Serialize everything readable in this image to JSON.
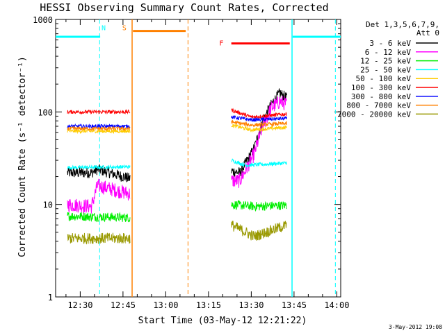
{
  "chart_data": {
    "type": "line",
    "title": "HESSI Observing Summary Count Rates, Corrected",
    "xlabel": "Start Time (03-May-12 12:21:22)",
    "ylabel": "Corrected Count Rate (s⁻¹ detector⁻¹)",
    "date_stamp": "3-May-2012 19:08",
    "x_axis": {
      "unit": "minutes since 12:00 UT",
      "range": [
        21.37,
        121.37
      ],
      "ticks": [
        {
          "x": 30,
          "label": "12:30"
        },
        {
          "x": 45,
          "label": "12:45"
        },
        {
          "x": 60,
          "label": "13:00"
        },
        {
          "x": 75,
          "label": "13:15"
        },
        {
          "x": 90,
          "label": "13:30"
        },
        {
          "x": 105,
          "label": "13:45"
        },
        {
          "x": 120,
          "label": "14:00"
        }
      ]
    },
    "y_axis": {
      "scale": "log",
      "range": [
        1,
        1000
      ],
      "ticks": [
        {
          "y": 1,
          "label": "1"
        },
        {
          "y": 10,
          "label": "10"
        },
        {
          "y": 100,
          "label": "100"
        },
        {
          "y": 1000,
          "label": "1000"
        }
      ]
    },
    "legend": {
      "header1": "Det 1,3,5,6,7,9,",
      "header2": "Att 0",
      "placement": "right"
    },
    "segments": [
      [
        25.5,
        47.5
      ],
      [
        83.0,
        102.5
      ]
    ],
    "series": [
      {
        "name": "3 - 6 keV",
        "color": "#000000",
        "noise": 0.06,
        "values": [
          [
            25.5,
            22
          ],
          [
            34,
            22
          ],
          [
            36,
            24
          ],
          [
            47.5,
            19
          ],
          [
            83,
            23
          ],
          [
            86,
            22
          ],
          [
            91,
            40
          ],
          [
            94,
            80
          ],
          [
            97,
            120
          ],
          [
            100,
            160
          ],
          [
            102.5,
            140
          ]
        ]
      },
      {
        "name": "6 - 12 keV",
        "color": "#ff00ff",
        "noise": 0.08,
        "values": [
          [
            25.5,
            10
          ],
          [
            34,
            9.5
          ],
          [
            36,
            16
          ],
          [
            47.5,
            13
          ],
          [
            83,
            18
          ],
          [
            86,
            18
          ],
          [
            91,
            35
          ],
          [
            94,
            70
          ],
          [
            97,
            110
          ],
          [
            100,
            130
          ],
          [
            102.5,
            120
          ]
        ]
      },
      {
        "name": "12 - 25 keV",
        "color": "#00ee00",
        "noise": 0.05,
        "values": [
          [
            25.5,
            7.5
          ],
          [
            47.5,
            7.2
          ],
          [
            83,
            10
          ],
          [
            91,
            9.5
          ],
          [
            102.5,
            9.8
          ]
        ]
      },
      {
        "name": "25 - 50 keV",
        "color": "#00ffff",
        "noise": 0.02,
        "values": [
          [
            25.5,
            25
          ],
          [
            47.5,
            25.5
          ],
          [
            83,
            30
          ],
          [
            88,
            26.5
          ],
          [
            102.5,
            28
          ]
        ]
      },
      {
        "name": "50 - 100 keV",
        "color": "#ffcc00",
        "noise": 0.02,
        "values": [
          [
            25.5,
            62
          ],
          [
            47.5,
            62
          ],
          [
            83,
            72
          ],
          [
            90,
            64
          ],
          [
            102.5,
            68
          ]
        ]
      },
      {
        "name": "100 - 300 keV",
        "color": "#ff0000",
        "noise": 0.02,
        "values": [
          [
            25.5,
            100
          ],
          [
            47.5,
            100
          ],
          [
            83,
            105
          ],
          [
            90,
            88
          ],
          [
            102.5,
            95
          ]
        ]
      },
      {
        "name": "300 - 800 keV",
        "color": "#0000ff",
        "noise": 0.02,
        "values": [
          [
            25.5,
            70
          ],
          [
            47.5,
            70
          ],
          [
            83,
            88
          ],
          [
            90,
            82
          ],
          [
            102.5,
            85
          ]
        ]
      },
      {
        "name": "800 - 7000 keV",
        "color": "#ff8000",
        "noise": 0.02,
        "values": [
          [
            25.5,
            66
          ],
          [
            47.5,
            66
          ],
          [
            83,
            78
          ],
          [
            90,
            72
          ],
          [
            102.5,
            75
          ]
        ]
      },
      {
        "name": "7000 - 20000 keV",
        "color": "#999900",
        "noise": 0.06,
        "values": [
          [
            25.5,
            4.3
          ],
          [
            47.5,
            4.3
          ],
          [
            83,
            6
          ],
          [
            91,
            4.5
          ],
          [
            102.5,
            6.0
          ]
        ]
      }
    ],
    "flags": [
      {
        "label": "N",
        "color": "#00ffff",
        "level": 650,
        "spans": [
          [
            21.37,
            37
          ],
          [
            104.5,
            121.37
          ]
        ],
        "label_x": 38.2,
        "label_y": 820,
        "dashed_edges": [
          36.8,
          119.5
        ],
        "solid_edges": [
          104.3
        ]
      },
      {
        "label": "S",
        "color": "#ff8000",
        "level": 750,
        "spans": [
          [
            48.5,
            67
          ]
        ],
        "label_x": 45.5,
        "label_y": 820,
        "dashed_edges": [
          67.8
        ],
        "solid_edges": [
          48.2
        ]
      },
      {
        "label": "F",
        "color": "#ff0000",
        "level": 550,
        "spans": [
          [
            83,
            103.5
          ]
        ],
        "label_x": 79.5,
        "label_y": 560,
        "dashed_edges": [],
        "solid_edges": []
      }
    ]
  }
}
